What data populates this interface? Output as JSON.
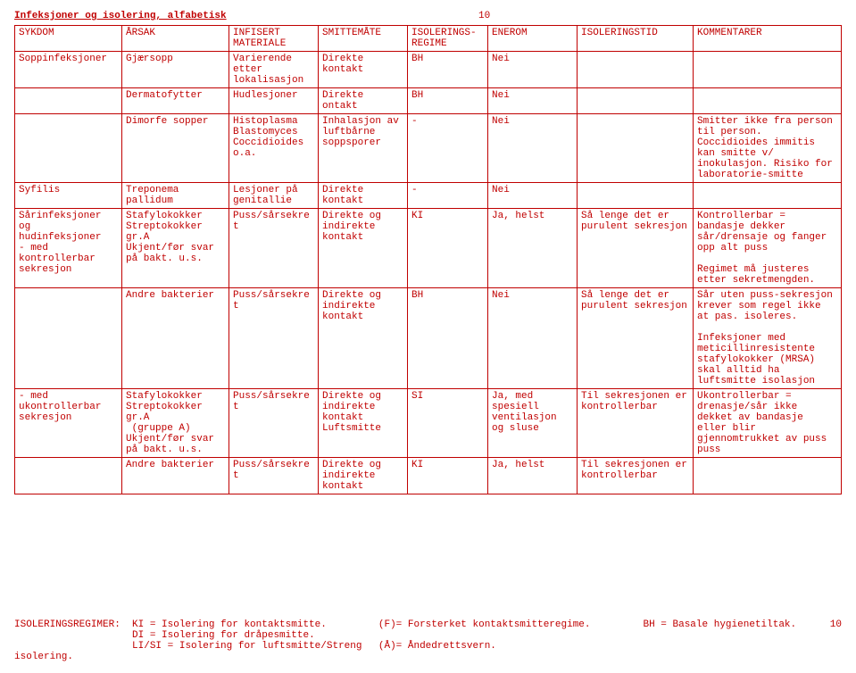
{
  "header": {
    "title": "Infeksjoner og isolering, alfabetisk",
    "page": "10"
  },
  "columns": {
    "sykdom": "SYKDOM",
    "arsak": "ÅRSAK",
    "infisert": "INFISERT MATERIALE",
    "smitte": "SMITTEMÅTE",
    "regime": "ISOLERINGS-REGIME",
    "enerom": "ENEROM",
    "tid": "ISOLERINGSTID",
    "komm": "KOMMENTARER"
  },
  "rows": {
    "r1": {
      "sykdom": "Soppinfeksjoner",
      "arsak": "Gjærsopp",
      "infisert": "Varierende etter lokalisasjon",
      "smitte": "Direkte kontakt",
      "regime": "BH",
      "enerom": "Nei",
      "tid": "",
      "komm": ""
    },
    "r2": {
      "sykdom": "",
      "arsak": "Dermatofytter",
      "infisert": "Hudlesjoner",
      "smitte": "Direkte ontakt",
      "regime": "BH",
      "enerom": "Nei",
      "tid": "",
      "komm": ""
    },
    "r3": {
      "sykdom": "",
      "arsak": "Dimorfe sopper",
      "infisert": "Histoplasma Blastomyces Coccidioides o.a.",
      "smitte": "Inhalasjon av luftbårne soppsporer",
      "regime": "-",
      "enerom": "Nei",
      "tid": "",
      "komm": "Smitter ikke fra person til person. Coccidioides immitis kan smitte v/ inokulasjon. Risiko for laboratorie-smitte"
    },
    "r4": {
      "sykdom": "Syfilis",
      "arsak": "Treponema pallidum",
      "infisert": "Lesjoner på genitallie",
      "smitte": "Direkte kontakt",
      "regime": "-",
      "enerom": "Nei",
      "tid": "",
      "komm": ""
    },
    "r5": {
      "sykdom": "Sårinfeksjoner og hudinfeksjoner\n- med kontrollerbar sekresjon",
      "arsak": "Stafylokokker\nStreptokokker gr.A\nUkjent/før svar på bakt. u.s.",
      "infisert": "Puss/sårsekret",
      "smitte": "Direkte og indirekte kontakt",
      "regime": "KI",
      "enerom": "Ja, helst",
      "tid": "Så lenge det er purulent sekresjon",
      "komm": "Kontrollerbar = bandasje dekker sår/drensaje og fanger opp alt puss\n\nRegimet må justeres etter sekretmengden."
    },
    "r6": {
      "sykdom": "",
      "arsak": "Andre bakterier",
      "infisert": "Puss/sårsekret",
      "smitte": "Direkte og indirekte kontakt",
      "regime": "BH",
      "enerom": "Nei",
      "tid": "Så lenge det er purulent sekresjon",
      "komm": "Sår uten puss-sekresjon krever som regel ikke at pas. isoleres.\n\nInfeksjoner med meticillinresistente stafylokokker (MRSA) skal alltid ha luftsmitte isolasjon"
    },
    "r7": {
      "sykdom": "- med ukontrollerbar sekresjon",
      "arsak": "Stafylokokker\nStreptokokker gr.A\n (gruppe A)\nUkjent/før svar på bakt. u.s.",
      "infisert": "Puss/sårsekret",
      "smitte": "Direkte og indirekte kontakt Luftsmitte",
      "regime": "SI",
      "enerom": "Ja, med spesiell ventilasjon og sluse",
      "tid": "Til sekresjonen er kontrollerbar",
      "komm": "Ukontrollerbar = drenasje/sår ikke dekket av bandasje eller blir gjennomtrukket av puss puss"
    },
    "r8": {
      "sykdom": "",
      "arsak": "Andre bakterier",
      "infisert": "Puss/sårsekret",
      "smitte": "Direkte og indirekte kontakt",
      "regime": "KI",
      "enerom": "Ja, helst",
      "tid": "Til sekresjonen er kontrollerbar",
      "komm": ""
    }
  },
  "footer": {
    "left": "ISOLERINGSREGIMER:  KI = Isolering for kontaktsmitte.\n                    DI = Isolering for dråpesmitte.\n                    LI/SI = Isolering for luftsmitte/Streng isolering.",
    "mid": "(F)= Forsterket kontaktsmitteregime.\n\n(Å)= Åndedrettsvern.",
    "right": "BH = Basale hygienetiltak.",
    "pagenum": "10"
  }
}
